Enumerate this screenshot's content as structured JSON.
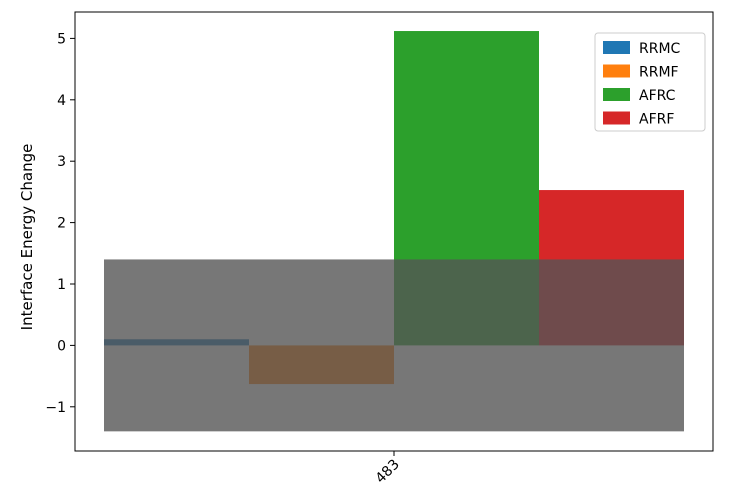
{
  "chart_data": {
    "type": "bar",
    "title": "",
    "xlabel": "",
    "ylabel": "Interface Energy Change",
    "categories": [
      "483"
    ],
    "ylim": [
      -1.72,
      5.43
    ],
    "yticks": [
      -1,
      0,
      1,
      2,
      3,
      4,
      5
    ],
    "ytick_labels": [
      "−1",
      "0",
      "1",
      "2",
      "3",
      "4",
      "5"
    ],
    "grid": false,
    "legend_position": "top-right",
    "series": [
      {
        "name": "RRMC",
        "values": [
          0.1
        ],
        "color": "#1f77b4"
      },
      {
        "name": "RRMF",
        "values": [
          -0.63
        ],
        "color": "#ff7f0e"
      },
      {
        "name": "AFRC",
        "values": [
          5.12
        ],
        "color": "#2ca02c"
      },
      {
        "name": "AFRF",
        "values": [
          2.53
        ],
        "color": "#d62728"
      }
    ],
    "band": {
      "low": -1.4,
      "high": 1.4,
      "color": "#555555",
      "opacity": 0.8
    }
  }
}
